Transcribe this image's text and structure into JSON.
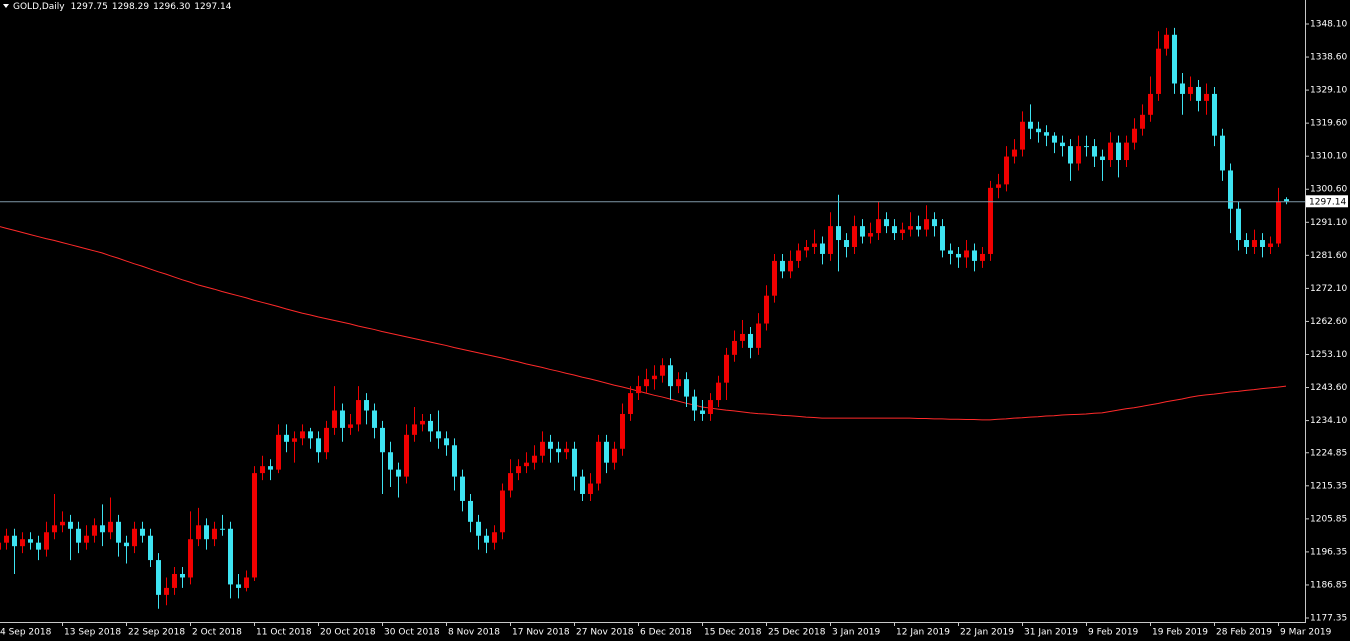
{
  "chart_data": {
    "type": "candlestick",
    "title": "GOLD,Daily",
    "header_values": [
      "1297.75",
      "1298.29",
      "1296.30",
      "1297.14"
    ],
    "up_color": "#f00000",
    "down_color": "#3ee4f2",
    "ma_color": "#ff2a2a",
    "price_line_color": "#7f98a8",
    "current_price": 1297.14,
    "ylim": [
      1176.2,
      1355.0
    ],
    "yticks": [
      {
        "value": 1348.1,
        "label": "1348.10"
      },
      {
        "value": 1338.6,
        "label": "1338.60"
      },
      {
        "value": 1329.1,
        "label": "1329.10"
      },
      {
        "value": 1319.6,
        "label": "1319.60"
      },
      {
        "value": 1310.1,
        "label": "1310.10"
      },
      {
        "value": 1300.6,
        "label": "1300.60"
      },
      {
        "value": 1291.1,
        "label": "1291.10"
      },
      {
        "value": 1281.6,
        "label": "1281.60"
      },
      {
        "value": 1272.1,
        "label": "1272.10"
      },
      {
        "value": 1262.6,
        "label": "1262.60"
      },
      {
        "value": 1253.1,
        "label": "1253.10"
      },
      {
        "value": 1243.6,
        "label": "1243.60"
      },
      {
        "value": 1234.1,
        "label": "1234.10"
      },
      1224.85,
      1215.35,
      1205.85,
      1196.35,
      1186.85,
      1177.35
    ],
    "categories": [
      "4 Sep 2018",
      null,
      null,
      null,
      null,
      null,
      null,
      null,
      "13 Sep 2018",
      null,
      null,
      null,
      null,
      null,
      null,
      null,
      "22 Sep 2018",
      null,
      null,
      null,
      null,
      null,
      null,
      null,
      "2 Oct 2018",
      null,
      null,
      null,
      null,
      null,
      null,
      null,
      "11 Oct 2018",
      null,
      null,
      null,
      null,
      null,
      null,
      null,
      "20 Oct 2018",
      null,
      null,
      null,
      null,
      null,
      null,
      null,
      "30 Oct 2018",
      null,
      null,
      null,
      null,
      null,
      null,
      null,
      "8 Nov 2018",
      null,
      null,
      null,
      null,
      null,
      null,
      null,
      "17 Nov 2018",
      null,
      null,
      null,
      null,
      null,
      null,
      null,
      "27 Nov 2018",
      null,
      null,
      null,
      null,
      null,
      null,
      null,
      "6 Dec 2018",
      null,
      null,
      null,
      null,
      null,
      null,
      null,
      "15 Dec 2018",
      null,
      null,
      null,
      null,
      null,
      null,
      null,
      "25 Dec 2018",
      null,
      null,
      null,
      null,
      null,
      null,
      null,
      "3 Jan 2019",
      null,
      null,
      null,
      null,
      null,
      null,
      null,
      "12 Jan 2019",
      null,
      null,
      null,
      null,
      null,
      null,
      null,
      "22 Jan 2019",
      null,
      null,
      null,
      null,
      null,
      null,
      null,
      "31 Jan 2019",
      null,
      null,
      null,
      null,
      null,
      null,
      null,
      "9 Feb 2019",
      null,
      null,
      null,
      null,
      null,
      null,
      null,
      "19 Feb 2019",
      null,
      null,
      null,
      null,
      null,
      null,
      null,
      "28 Feb 2019",
      null,
      null,
      null,
      null,
      null,
      null,
      null,
      "9 Mar 2019",
      null
    ],
    "open": [
      1197,
      1199,
      1201,
      1198,
      1200,
      1199,
      1197,
      1202,
      1204,
      1205,
      1203,
      1199,
      1201,
      1204,
      1202,
      1205,
      1199,
      1198,
      1203,
      1201,
      1194,
      1184,
      1186,
      1190,
      1189,
      1200,
      1204,
      1200,
      1203,
      1203,
      1187,
      1186,
      1189,
      1219,
      1221,
      1220,
      1230,
      1228,
      1229,
      1231,
      1229,
      1225,
      1232,
      1237,
      1232,
      1233,
      1240,
      1237,
      1232,
      1225,
      1220,
      1218,
      1230,
      1233,
      1234,
      1231,
      1229,
      1227,
      1218,
      1211,
      1205,
      1201,
      1199,
      1202,
      1214,
      1219,
      1221,
      1222,
      1224,
      1228,
      1226,
      1225,
      1226,
      1218,
      1213,
      1216,
      1228,
      1222,
      1226,
      1236,
      1242,
      1244,
      1246,
      1247,
      1250,
      1244,
      1246,
      1241,
      1237,
      1236,
      1240,
      1245,
      1253,
      1257,
      1259,
      1255,
      1262,
      1270,
      1280,
      1277,
      1280,
      1283,
      1284,
      1285,
      1282,
      1290,
      1286,
      1284,
      1290,
      1287,
      1288,
      1292,
      1290,
      1288,
      1289,
      1290,
      1289,
      1292,
      1290,
      1283,
      1282,
      1281,
      1283,
      1280,
      1282,
      1301,
      1302,
      1310,
      1312,
      1320,
      1318,
      1317,
      1316,
      1314,
      1313,
      1308,
      1313,
      1313,
      1310,
      1309,
      1314,
      1309,
      1314,
      1318,
      1322,
      1328,
      1341,
      1345,
      1331,
      1328,
      1330,
      1326,
      1328,
      1316,
      1306,
      1295,
      1286,
      1284,
      1286,
      1284,
      1285,
      1297.75
    ],
    "high": [
      1201,
      1203,
      1203,
      1202,
      1202,
      1201,
      1205,
      1213,
      1208,
      1207,
      1205,
      1204,
      1206,
      1210,
      1212,
      1207,
      1201,
      1205,
      1205,
      1203,
      1196,
      1189,
      1192,
      1192,
      1208,
      1209,
      1206,
      1205,
      1207,
      1205,
      1190,
      1191,
      1221,
      1224,
      1223,
      1233,
      1233,
      1231,
      1233,
      1232,
      1231,
      1234,
      1244,
      1239,
      1236,
      1244,
      1242,
      1239,
      1234,
      1228,
      1222,
      1233,
      1238,
      1236,
      1236,
      1237,
      1231,
      1229,
      1220,
      1213,
      1207,
      1203,
      1204,
      1216,
      1223,
      1223,
      1225,
      1227,
      1231,
      1230,
      1228,
      1228,
      1228,
      1220,
      1219,
      1230,
      1230,
      1228,
      1239,
      1244,
      1247,
      1249,
      1250,
      1252,
      1252,
      1248,
      1248,
      1243,
      1240,
      1242,
      1247,
      1255,
      1260,
      1263,
      1261,
      1265,
      1273,
      1282,
      1282,
      1283,
      1285,
      1286,
      1289,
      1287,
      1294,
      1299,
      1288,
      1293,
      1292,
      1291,
      1297,
      1294,
      1292,
      1291,
      1294,
      1293,
      1296,
      1294,
      1292,
      1285,
      1284,
      1286,
      1285,
      1284,
      1303,
      1305,
      1313,
      1315,
      1323,
      1325,
      1320,
      1319,
      1317,
      1316,
      1315,
      1316,
      1316,
      1315,
      1312,
      1317,
      1316,
      1316,
      1321,
      1325,
      1333,
      1346,
      1347,
      1347,
      1334,
      1333,
      1332,
      1331,
      1330,
      1318,
      1308,
      1297,
      1288,
      1289,
      1288,
      1287,
      1301,
      1298.29
    ],
    "low": [
      1195,
      1197,
      1190,
      1196,
      1197,
      1194,
      1195,
      1200,
      1202,
      1194,
      1196,
      1197,
      1199,
      1198,
      1200,
      1195,
      1193,
      1196,
      1199,
      1192,
      1180,
      1181,
      1184,
      1186,
      1187,
      1198,
      1197,
      1198,
      1201,
      1183,
      1183,
      1185,
      1188,
      1217,
      1217,
      1219,
      1225,
      1222,
      1227,
      1226,
      1222,
      1223,
      1230,
      1228,
      1230,
      1231,
      1233,
      1229,
      1213,
      1215,
      1212,
      1216,
      1228,
      1231,
      1228,
      1226,
      1224,
      1214,
      1208,
      1202,
      1197,
      1196,
      1197,
      1200,
      1212,
      1217,
      1219,
      1220,
      1222,
      1222,
      1222,
      1223,
      1214,
      1211,
      1211,
      1214,
      1219,
      1220,
      1224,
      1234,
      1240,
      1242,
      1243,
      1245,
      1240,
      1242,
      1238,
      1234,
      1234,
      1234,
      1238,
      1240,
      1251,
      1255,
      1252,
      1253,
      1260,
      1268,
      1275,
      1275,
      1278,
      1281,
      1282,
      1279,
      1280,
      1277,
      1281,
      1282,
      1285,
      1285,
      1286,
      1288,
      1286,
      1286,
      1287,
      1287,
      1287,
      1287,
      1281,
      1279,
      1278,
      1278,
      1277,
      1278,
      1280,
      1298,
      1300,
      1308,
      1310,
      1315,
      1314,
      1313,
      1311,
      1310,
      1303,
      1306,
      1310,
      1307,
      1303,
      1307,
      1304,
      1307,
      1312,
      1316,
      1320,
      1326,
      1339,
      1328,
      1322,
      1326,
      1323,
      1322,
      1313,
      1303,
      1288,
      1283,
      1282,
      1282,
      1281,
      1282,
      1284,
      1296.3
    ],
    "close": [
      1199,
      1201,
      1198,
      1200,
      1199,
      1197,
      1202,
      1204,
      1205,
      1203,
      1199,
      1201,
      1204,
      1202,
      1205,
      1199,
      1198,
      1203,
      1201,
      1194,
      1184,
      1186,
      1190,
      1189,
      1200,
      1204,
      1200,
      1203,
      1203,
      1187,
      1186,
      1189,
      1219,
      1221,
      1220,
      1230,
      1228,
      1229,
      1231,
      1229,
      1225,
      1232,
      1237,
      1232,
      1233,
      1240,
      1237,
      1232,
      1225,
      1220,
      1218,
      1230,
      1233,
      1234,
      1231,
      1229,
      1227,
      1218,
      1211,
      1205,
      1201,
      1199,
      1202,
      1214,
      1219,
      1221,
      1222,
      1224,
      1228,
      1226,
      1225,
      1226,
      1218,
      1213,
      1216,
      1228,
      1222,
      1226,
      1236,
      1242,
      1244,
      1246,
      1247,
      1250,
      1244,
      1246,
      1241,
      1237,
      1236,
      1240,
      1245,
      1253,
      1257,
      1259,
      1255,
      1262,
      1270,
      1280,
      1277,
      1280,
      1283,
      1284,
      1285,
      1282,
      1290,
      1286,
      1284,
      1290,
      1287,
      1288,
      1292,
      1290,
      1288,
      1289,
      1290,
      1289,
      1292,
      1290,
      1283,
      1282,
      1281,
      1283,
      1280,
      1282,
      1301,
      1302,
      1310,
      1312,
      1320,
      1318,
      1317,
      1316,
      1314,
      1313,
      1308,
      1313,
      1313,
      1310,
      1309,
      1314,
      1309,
      1314,
      1318,
      1322,
      1328,
      1341,
      1345,
      1331,
      1328,
      1330,
      1326,
      1328,
      1316,
      1306,
      1295,
      1286,
      1284,
      1286,
      1284,
      1285,
      1297,
      1297.14
    ],
    "moving_average": [
      1290.0,
      1289.4,
      1288.8,
      1288.2,
      1287.6,
      1287.0,
      1286.4,
      1285.9,
      1285.3,
      1284.7,
      1284.1,
      1283.5,
      1282.9,
      1282.3,
      1281.5,
      1280.8,
      1280.0,
      1279.2,
      1278.5,
      1277.7,
      1276.9,
      1276.2,
      1275.4,
      1274.6,
      1273.9,
      1273.1,
      1272.5,
      1271.9,
      1271.2,
      1270.6,
      1270.0,
      1269.4,
      1268.7,
      1268.1,
      1267.5,
      1266.9,
      1266.2,
      1265.6,
      1265.0,
      1264.5,
      1263.9,
      1263.4,
      1262.9,
      1262.4,
      1261.9,
      1261.3,
      1260.8,
      1260.3,
      1259.7,
      1259.2,
      1258.7,
      1258.2,
      1257.7,
      1257.2,
      1256.7,
      1256.2,
      1255.7,
      1255.1,
      1254.6,
      1254.1,
      1253.6,
      1253.1,
      1252.6,
      1252.1,
      1251.5,
      1251.0,
      1250.4,
      1249.9,
      1249.4,
      1248.8,
      1248.3,
      1247.7,
      1247.2,
      1246.6,
      1246.1,
      1245.5,
      1244.9,
      1244.3,
      1243.8,
      1243.2,
      1242.6,
      1242.0,
      1241.4,
      1240.9,
      1240.3,
      1239.7,
      1239.1,
      1238.6,
      1238.0,
      1237.7,
      1237.4,
      1237.1,
      1236.9,
      1236.6,
      1236.3,
      1236.1,
      1236.0,
      1235.8,
      1235.6,
      1235.5,
      1235.3,
      1235.1,
      1235.0,
      1234.8,
      1234.8,
      1234.8,
      1234.8,
      1234.8,
      1234.8,
      1234.8,
      1234.8,
      1234.8,
      1234.8,
      1234.8,
      1234.8,
      1234.7,
      1234.7,
      1234.6,
      1234.6,
      1234.5,
      1234.5,
      1234.4,
      1234.4,
      1234.3,
      1234.3,
      1234.5,
      1234.6,
      1234.8,
      1234.9,
      1235.1,
      1235.2,
      1235.4,
      1235.5,
      1235.7,
      1235.8,
      1235.9,
      1236.0,
      1236.2,
      1236.3,
      1236.7,
      1237.1,
      1237.5,
      1237.8,
      1238.2,
      1238.6,
      1239.0,
      1239.5,
      1239.9,
      1240.3,
      1240.8,
      1241.2,
      1241.5,
      1241.7,
      1242.0,
      1242.3,
      1242.5,
      1242.8,
      1243.0,
      1243.3,
      1243.5,
      1243.7,
      1244.0
    ]
  }
}
